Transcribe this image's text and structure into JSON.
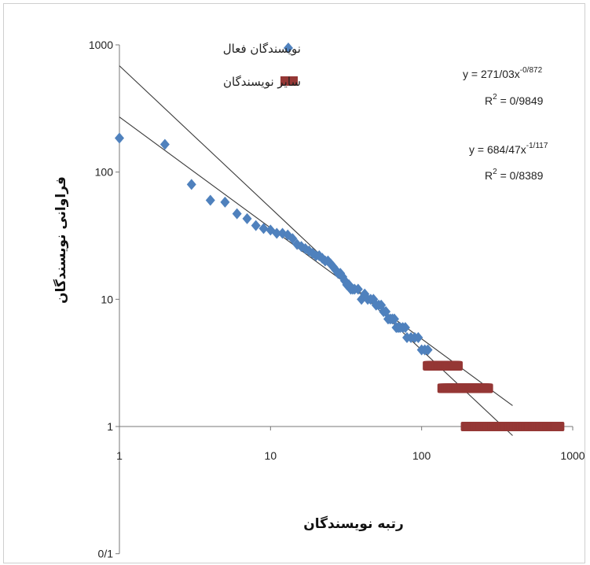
{
  "chart_data": {
    "type": "scatter",
    "x_scale": "log",
    "y_scale": "log",
    "xlim": [
      1,
      1000
    ],
    "ylim": [
      0.1,
      1000
    ],
    "xlabel": "رتبه نویسندگان",
    "ylabel": "فراوانی نویسندگان",
    "x_ticks": [
      "1",
      "10",
      "100",
      "1000"
    ],
    "y_ticks": [
      "0/1",
      "1",
      "10",
      "100",
      "1000"
    ],
    "series": [
      {
        "name": "نویسندگان فعال",
        "marker": "diamond",
        "color": "#4f81bd",
        "points": [
          [
            1,
            185
          ],
          [
            2,
            165
          ],
          [
            3,
            80
          ],
          [
            4,
            60
          ],
          [
            5,
            58
          ],
          [
            6,
            47
          ],
          [
            7,
            43
          ],
          [
            8,
            38
          ],
          [
            9,
            36
          ],
          [
            10,
            35
          ],
          [
            11,
            33
          ],
          [
            12,
            33
          ],
          [
            13,
            32
          ],
          [
            14,
            30
          ],
          [
            15,
            27
          ],
          [
            16,
            26
          ],
          [
            17,
            25
          ],
          [
            18,
            24
          ],
          [
            19,
            23
          ],
          [
            20,
            22
          ],
          [
            21,
            22
          ],
          [
            22,
            21
          ],
          [
            23,
            20
          ],
          [
            24,
            20
          ],
          [
            25,
            19
          ],
          [
            26,
            18
          ],
          [
            27,
            17
          ],
          [
            28,
            16
          ],
          [
            29,
            16
          ],
          [
            30,
            15
          ],
          [
            31,
            14
          ],
          [
            32,
            13
          ],
          [
            33,
            13
          ],
          [
            34,
            12
          ],
          [
            35,
            12
          ],
          [
            36,
            12
          ],
          [
            38,
            12
          ],
          [
            40,
            10
          ],
          [
            42,
            11
          ],
          [
            44,
            10
          ],
          [
            46,
            10
          ],
          [
            48,
            10
          ],
          [
            50,
            9
          ],
          [
            52,
            9
          ],
          [
            54,
            9
          ],
          [
            56,
            8
          ],
          [
            58,
            8
          ],
          [
            60,
            7
          ],
          [
            62,
            7
          ],
          [
            64,
            7
          ],
          [
            66,
            7
          ],
          [
            68,
            6
          ],
          [
            70,
            6
          ],
          [
            72,
            6
          ],
          [
            75,
            6
          ],
          [
            78,
            6
          ],
          [
            80,
            5
          ],
          [
            85,
            5
          ],
          [
            90,
            5
          ],
          [
            95,
            5
          ],
          [
            100,
            4
          ],
          [
            105,
            4
          ],
          [
            110,
            4
          ]
        ]
      },
      {
        "name": "سایر نویسندگان",
        "marker": "square",
        "color": "#953735",
        "points_ranges": [
          {
            "y": 3,
            "x_from": 112,
            "x_to": 170
          },
          {
            "y": 2,
            "x_from": 140,
            "x_to": 270
          },
          {
            "y": 1,
            "x_from": 200,
            "x_to": 800
          }
        ]
      }
    ],
    "trendlines": [
      {
        "type": "power",
        "a": 271.03,
        "b": -0.872,
        "equation": "y = 271/03x",
        "exponent": "-0/872",
        "r2_label": "R",
        "r2_value": " = 0/9849",
        "x_from": 1,
        "x_to": 400
      },
      {
        "type": "power",
        "a": 684.47,
        "b": -1.117,
        "equation": "y = 684/47x",
        "exponent": "-1/117",
        "r2_label": "R",
        "r2_value": " = 0/8389",
        "x_from": 1,
        "x_to": 400
      }
    ],
    "legend_position": "top",
    "grid": false
  }
}
